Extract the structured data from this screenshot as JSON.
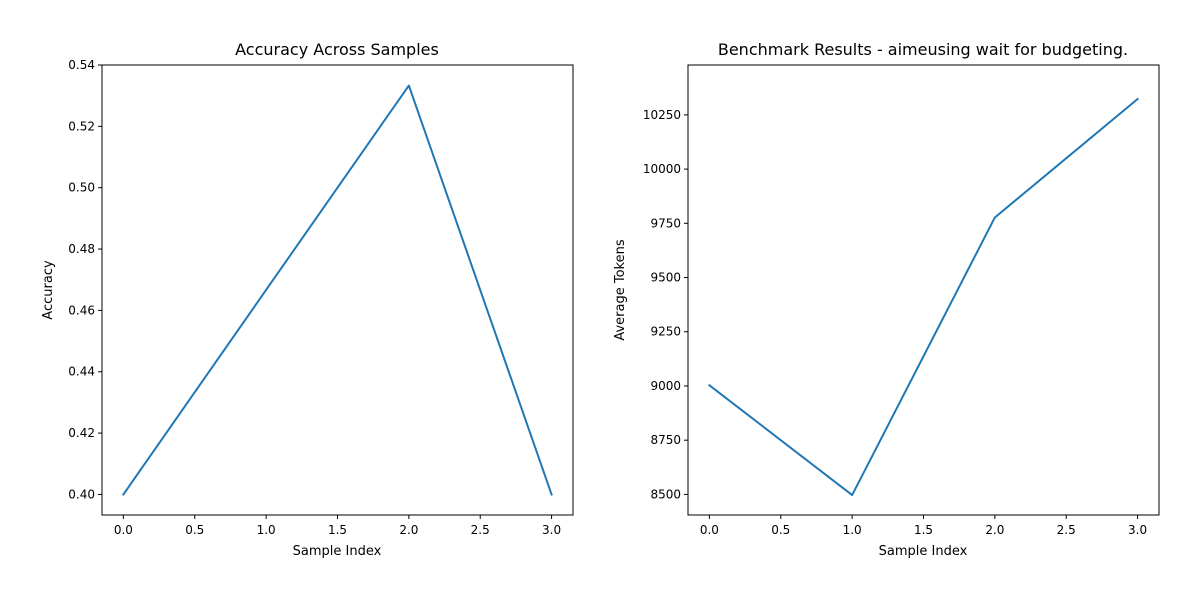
{
  "chart_data": [
    {
      "type": "line",
      "title": "Accuracy Across Samples",
      "xlabel": "Sample Index",
      "ylabel": "Accuracy",
      "x": [
        0,
        1,
        2,
        3
      ],
      "series": [
        {
          "values": [
            0.4,
            0.4667,
            0.5333,
            0.4
          ],
          "color": "#1f77b4"
        }
      ],
      "xlim": [
        -0.15,
        3.15
      ],
      "ylim": [
        0.3933,
        0.54
      ],
      "xticks": [
        0.0,
        0.5,
        1.0,
        1.5,
        2.0,
        2.5,
        3.0
      ],
      "xtick_labels": [
        "0.0",
        "0.5",
        "1.0",
        "1.5",
        "2.0",
        "2.5",
        "3.0"
      ],
      "yticks": [
        0.4,
        0.42,
        0.44,
        0.46,
        0.48,
        0.5,
        0.52,
        0.54
      ],
      "ytick_labels": [
        "0.40",
        "0.42",
        "0.44",
        "0.46",
        "0.48",
        "0.50",
        "0.52",
        "0.54"
      ],
      "grid": false
    },
    {
      "type": "line",
      "title": "Benchmark Results - aimeusing wait for budgeting.",
      "xlabel": "Sample Index",
      "ylabel": "Average Tokens",
      "x": [
        0,
        1,
        2,
        3
      ],
      "series": [
        {
          "values": [
            9003,
            8497,
            9777,
            10323
          ],
          "color": "#1f77b4"
        }
      ],
      "xlim": [
        -0.15,
        3.15
      ],
      "ylim": [
        8405,
        10480
      ],
      "xticks": [
        0.0,
        0.5,
        1.0,
        1.5,
        2.0,
        2.5,
        3.0
      ],
      "xtick_labels": [
        "0.0",
        "0.5",
        "1.0",
        "1.5",
        "2.0",
        "2.5",
        "3.0"
      ],
      "yticks": [
        8500,
        8750,
        9000,
        9250,
        9500,
        9750,
        10000,
        10250
      ],
      "ytick_labels": [
        "8500",
        "8750",
        "9000",
        "9250",
        "9500",
        "9750",
        "10000",
        "10250"
      ],
      "grid": false
    }
  ]
}
